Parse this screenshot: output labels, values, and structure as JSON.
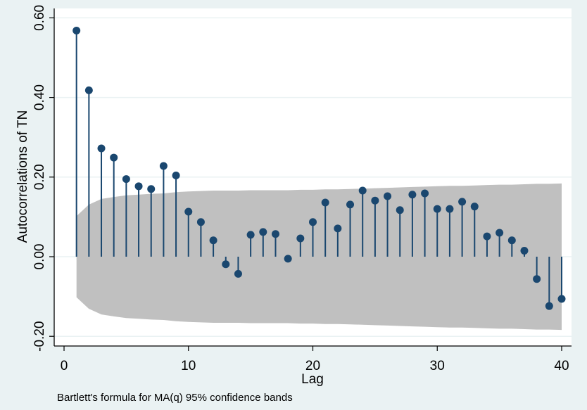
{
  "chart_data": {
    "type": "stem",
    "title": "",
    "xlabel": "Lag",
    "ylabel": "Autocorrelations of TN",
    "note": "Bartlett's formula for MA(q) 95% confidence bands",
    "xlim": [
      0,
      40
    ],
    "ylim": [
      -0.2,
      0.6
    ],
    "x_ticks": [
      0,
      10,
      20,
      30,
      40
    ],
    "x_tick_labels": [
      "0",
      "10",
      "20",
      "30",
      "40"
    ],
    "y_ticks": [
      -0.2,
      0.0,
      0.2,
      0.4,
      0.6
    ],
    "y_tick_labels": [
      "-0.20",
      "0.00",
      "0.20",
      "0.40",
      "0.60"
    ],
    "grid": true,
    "lags": [
      1,
      2,
      3,
      4,
      5,
      6,
      7,
      8,
      9,
      10,
      11,
      12,
      13,
      14,
      15,
      16,
      17,
      18,
      19,
      20,
      21,
      22,
      23,
      24,
      25,
      26,
      27,
      28,
      29,
      30,
      31,
      32,
      33,
      34,
      35,
      36,
      37,
      38,
      39,
      40
    ],
    "acf": [
      0.568,
      0.418,
      0.272,
      0.249,
      0.195,
      0.177,
      0.17,
      0.228,
      0.204,
      0.113,
      0.087,
      0.041,
      -0.019,
      -0.043,
      0.055,
      0.062,
      0.057,
      -0.005,
      0.046,
      0.087,
      0.136,
      0.071,
      0.131,
      0.166,
      0.141,
      0.152,
      0.117,
      0.156,
      0.159,
      0.12,
      0.12,
      0.138,
      0.126,
      0.051,
      0.06,
      0.041,
      0.015,
      -0.056,
      -0.124,
      -0.106
    ],
    "confidence_band": [
      0.102,
      0.131,
      0.145,
      0.15,
      0.154,
      0.156,
      0.158,
      0.159,
      0.162,
      0.164,
      0.165,
      0.166,
      0.166,
      0.166,
      0.167,
      0.167,
      0.167,
      0.167,
      0.168,
      0.168,
      0.169,
      0.169,
      0.17,
      0.171,
      0.172,
      0.173,
      0.174,
      0.175,
      0.176,
      0.177,
      0.178,
      0.178,
      0.179,
      0.18,
      0.181,
      0.181,
      0.182,
      0.183,
      0.183,
      0.184
    ],
    "colors": {
      "stem": "#1A476F",
      "band": "#C0C0C0",
      "background": "#EAF2F3",
      "plot_background": "#FFFFFF",
      "grid": "#EAF2F3"
    }
  }
}
